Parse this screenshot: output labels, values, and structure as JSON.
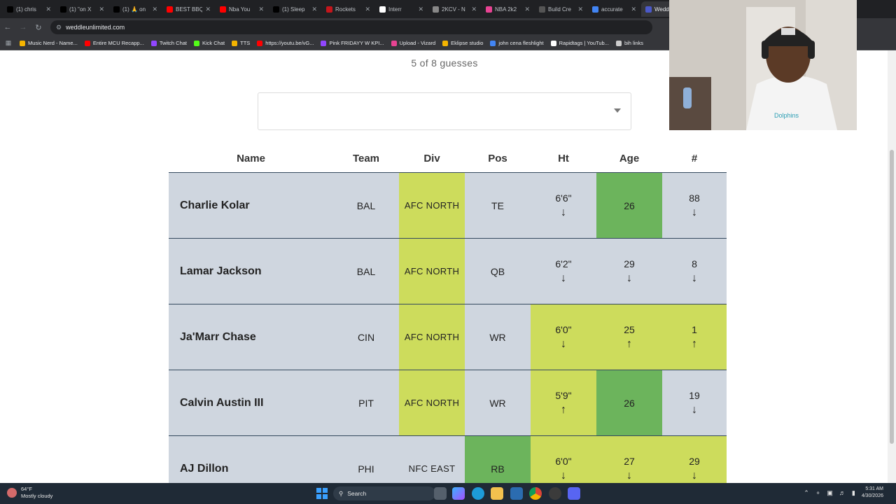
{
  "browser": {
    "tabs": [
      {
        "label": "(1) chris",
        "color": "#000000"
      },
      {
        "label": "(1) \"on X",
        "color": "#000000"
      },
      {
        "label": "(1) 🙏 on",
        "color": "#000000"
      },
      {
        "label": "BEST BBQ",
        "color": "#ff0000"
      },
      {
        "label": "Nba You",
        "color": "#ff0000"
      },
      {
        "label": "(1) Sleep",
        "color": "#000000"
      },
      {
        "label": "Rockets",
        "color": "#c4161c"
      },
      {
        "label": "Interr",
        "color": "#ffffff"
      },
      {
        "label": "2KCV - N",
        "color": "#888888"
      },
      {
        "label": "NBA 2k2",
        "color": "#e84393"
      },
      {
        "label": "Build Cre",
        "color": "#555555"
      },
      {
        "label": "accurate",
        "color": "#4285f4"
      },
      {
        "label": "Weddl",
        "color": "#4b59c9"
      }
    ],
    "url": "weddleunlimited.com",
    "bookmarks": [
      {
        "label": "Music Nerd - Name...",
        "color": "#f4b400"
      },
      {
        "label": "Entire MCU Recapp...",
        "color": "#ff0000"
      },
      {
        "label": "Twitch Chat",
        "color": "#9146ff"
      },
      {
        "label": "Kick Chat",
        "color": "#53fc18"
      },
      {
        "label": "TTS",
        "color": "#f4b400"
      },
      {
        "label": "https://youtu.be/vG...",
        "color": "#ff0000"
      },
      {
        "label": "Pink FRIDAYY W KPI...",
        "color": "#9146ff"
      },
      {
        "label": "Upload - Vizard",
        "color": "#e84393"
      },
      {
        "label": "Eklipse studio",
        "color": "#f4b400"
      },
      {
        "label": "john cena fleshlight",
        "color": "#4285f4"
      },
      {
        "label": "Rapidtags | YouTub...",
        "color": "#ffffff"
      },
      {
        "label": "bih links",
        "color": "#cccccc"
      }
    ]
  },
  "game": {
    "guess_count": "5 of 8 guesses",
    "columns": [
      "Name",
      "Team",
      "Div",
      "Pos",
      "Ht",
      "Age",
      "#"
    ],
    "rows": [
      {
        "name": "Charlie Kolar",
        "team": "BAL",
        "div": "AFC NORTH",
        "pos": "TE",
        "ht": "6'6\"",
        "ht_arrow": "↓",
        "age": "26",
        "age_arrow": "",
        "num": "88",
        "num_arrow": "↓"
      },
      {
        "name": "Lamar Jackson",
        "team": "BAL",
        "div": "AFC NORTH",
        "pos": "QB",
        "ht": "6'2\"",
        "ht_arrow": "↓",
        "age": "29",
        "age_arrow": "↓",
        "num": "8",
        "num_arrow": "↓"
      },
      {
        "name": "Ja'Marr Chase",
        "team": "CIN",
        "div": "AFC NORTH",
        "pos": "WR",
        "ht": "6'0\"",
        "ht_arrow": "↓",
        "age": "25",
        "age_arrow": "↑",
        "num": "1",
        "num_arrow": "↑"
      },
      {
        "name": "Calvin Austin III",
        "team": "PIT",
        "div": "AFC NORTH",
        "pos": "WR",
        "ht": "5'9\"",
        "ht_arrow": "↑",
        "age": "26",
        "age_arrow": "",
        "num": "19",
        "num_arrow": "↓"
      },
      {
        "name": "AJ Dillon",
        "team": "PHI",
        "div": "NFC EAST",
        "pos": "RB",
        "ht": "6'0\"",
        "ht_arrow": "↓",
        "age": "27",
        "age_arrow": "↓",
        "num": "29",
        "num_arrow": "↓"
      }
    ],
    "colors": {
      "partial": "#cddc5c",
      "correct": "#6cb45c",
      "miss": "#cfd6df"
    }
  },
  "taskbar": {
    "weather_temp": "64°F",
    "weather_desc": "Mostly cloudy",
    "search_label": "Search",
    "time": "5:31 AM",
    "date": "4/30/2026"
  }
}
